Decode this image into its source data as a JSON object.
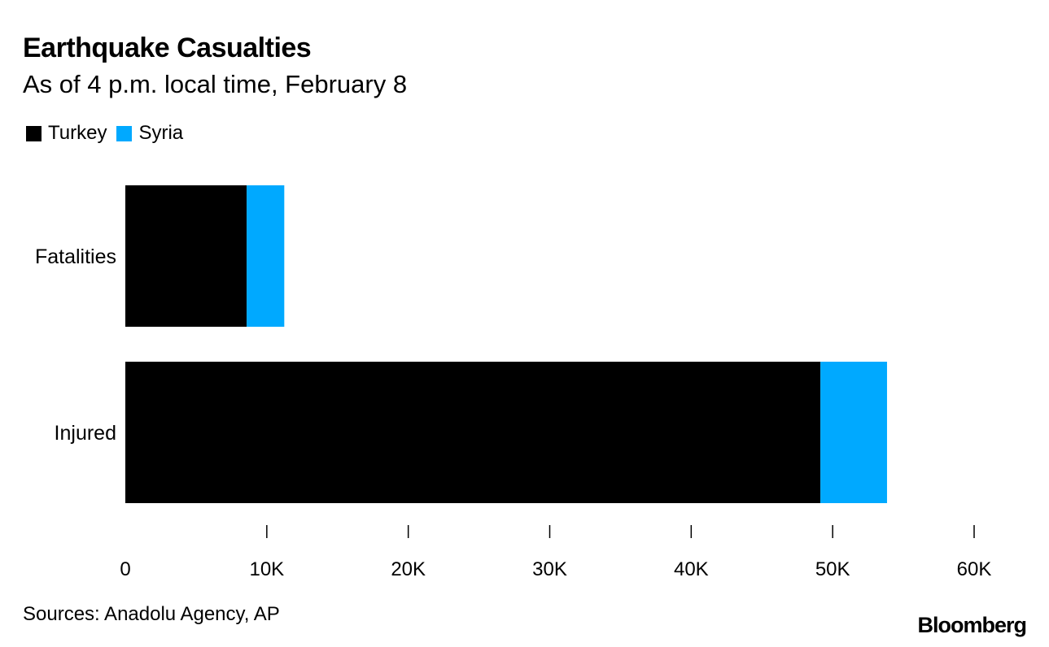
{
  "chart_data": {
    "type": "bar",
    "orientation": "horizontal",
    "stacked": true,
    "title": "Earthquake Casualties",
    "subtitle": "As of 4 p.m. local time, February 8",
    "categories": [
      "Fatalities",
      "Injured"
    ],
    "series": [
      {
        "name": "Turkey",
        "color": "#000000",
        "values": [
          8574,
          49133
        ]
      },
      {
        "name": "Syria",
        "color": "#00a9ff",
        "values": [
          2662,
          4710
        ]
      }
    ],
    "xlim": [
      0,
      60000
    ],
    "xticks": [
      0,
      10000,
      20000,
      30000,
      40000,
      50000,
      60000
    ],
    "xtick_labels": [
      "0",
      "10K",
      "20K",
      "30K",
      "40K",
      "50K",
      "60K"
    ],
    "legend_position": "top-left",
    "grid": false
  },
  "footer": {
    "source": "Sources: Anadolu Agency, AP",
    "brand": "Bloomberg"
  }
}
